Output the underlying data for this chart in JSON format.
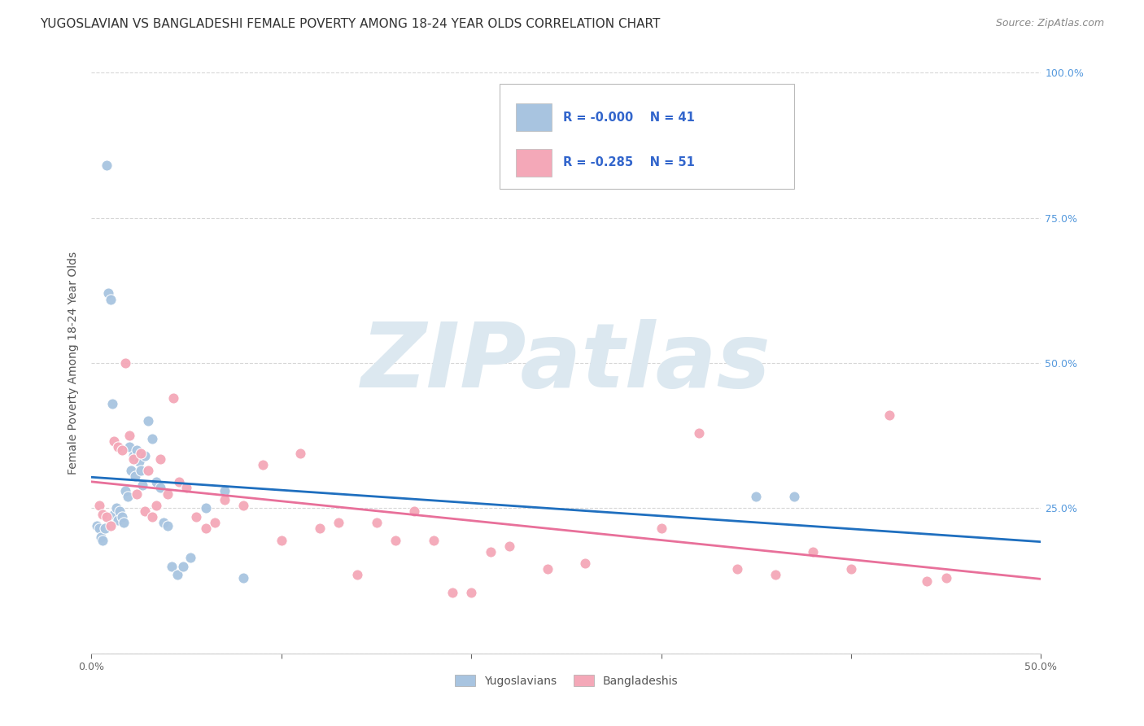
{
  "title": "YUGOSLAVIAN VS BANGLADESHI FEMALE POVERTY AMONG 18-24 YEAR OLDS CORRELATION CHART",
  "source": "Source: ZipAtlas.com",
  "ylabel": "Female Poverty Among 18-24 Year Olds",
  "xlim": [
    0.0,
    0.5
  ],
  "ylim": [
    0.0,
    1.0
  ],
  "yugo_color": "#a8c4e0",
  "bang_color": "#f4a8b8",
  "yugo_line_color": "#1f6fbf",
  "bang_line_color": "#e8709a",
  "grid_color": "#cccccc",
  "background_color": "#ffffff",
  "legend_label_yugo": "Yugoslavians",
  "legend_label_bang": "Bangladeshis",
  "R_yugo": "-0.000",
  "N_yugo": "41",
  "R_bang": "-0.285",
  "N_bang": "51",
  "watermark": "ZIPatlas",
  "watermark_color": "#dce8f0",
  "yugo_x": [
    0.003,
    0.004,
    0.005,
    0.006,
    0.007,
    0.008,
    0.009,
    0.01,
    0.011,
    0.012,
    0.013,
    0.014,
    0.015,
    0.016,
    0.017,
    0.018,
    0.019,
    0.02,
    0.021,
    0.022,
    0.023,
    0.024,
    0.025,
    0.026,
    0.027,
    0.028,
    0.03,
    0.032,
    0.034,
    0.036,
    0.038,
    0.04,
    0.042,
    0.045,
    0.048,
    0.052,
    0.06,
    0.07,
    0.08,
    0.35,
    0.37
  ],
  "yugo_y": [
    0.22,
    0.215,
    0.2,
    0.195,
    0.215,
    0.84,
    0.62,
    0.61,
    0.43,
    0.24,
    0.25,
    0.23,
    0.245,
    0.235,
    0.225,
    0.28,
    0.27,
    0.355,
    0.315,
    0.34,
    0.305,
    0.35,
    0.33,
    0.315,
    0.29,
    0.34,
    0.4,
    0.37,
    0.295,
    0.285,
    0.225,
    0.22,
    0.15,
    0.135,
    0.15,
    0.165,
    0.25,
    0.28,
    0.13,
    0.27,
    0.27
  ],
  "bang_x": [
    0.004,
    0.006,
    0.008,
    0.01,
    0.012,
    0.014,
    0.016,
    0.018,
    0.02,
    0.022,
    0.024,
    0.026,
    0.028,
    0.03,
    0.032,
    0.034,
    0.036,
    0.04,
    0.043,
    0.046,
    0.05,
    0.055,
    0.06,
    0.065,
    0.07,
    0.08,
    0.09,
    0.1,
    0.11,
    0.12,
    0.13,
    0.14,
    0.15,
    0.16,
    0.17,
    0.18,
    0.19,
    0.2,
    0.21,
    0.22,
    0.24,
    0.26,
    0.3,
    0.32,
    0.34,
    0.36,
    0.38,
    0.4,
    0.42,
    0.44,
    0.45
  ],
  "bang_y": [
    0.255,
    0.24,
    0.235,
    0.22,
    0.365,
    0.355,
    0.35,
    0.5,
    0.375,
    0.335,
    0.275,
    0.345,
    0.245,
    0.315,
    0.235,
    0.255,
    0.335,
    0.275,
    0.44,
    0.295,
    0.285,
    0.235,
    0.215,
    0.225,
    0.265,
    0.255,
    0.325,
    0.195,
    0.345,
    0.215,
    0.225,
    0.135,
    0.225,
    0.195,
    0.245,
    0.195,
    0.105,
    0.105,
    0.175,
    0.185,
    0.145,
    0.155,
    0.215,
    0.38,
    0.145,
    0.135,
    0.175,
    0.145,
    0.41,
    0.125,
    0.13
  ],
  "title_fontsize": 11,
  "source_fontsize": 9,
  "ylabel_fontsize": 10,
  "tick_fontsize": 9
}
